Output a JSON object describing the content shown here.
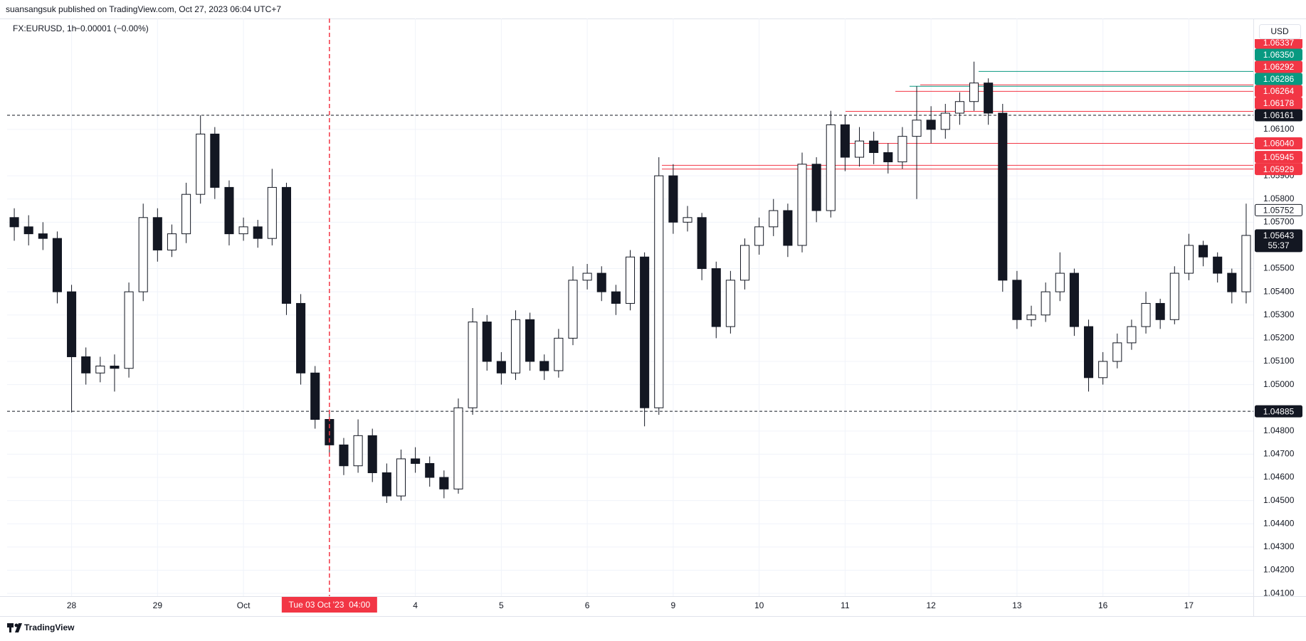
{
  "header": {
    "published": "suansangsuk published on TradingView.com, Oct 27, 2023 06:04 UTC+7",
    "symbol": "FX:EURUSD, 1h",
    "change": "−0.00001 (−0.00%)",
    "currency": "USD",
    "brand": "TradingView"
  },
  "chart_data": {
    "type": "candlestick",
    "categories": [
      null,
      null,
      null,
      null,
      "28",
      null,
      null,
      null,
      null,
      null,
      "29",
      null,
      null,
      null,
      null,
      null,
      "Oct",
      null,
      null,
      null,
      null,
      null,
      null,
      null,
      null,
      null,
      null,
      null,
      "4",
      null,
      null,
      null,
      null,
      null,
      "5",
      null,
      null,
      null,
      null,
      null,
      "6",
      null,
      null,
      null,
      null,
      null,
      "9",
      null,
      null,
      null,
      null,
      null,
      "10",
      null,
      null,
      null,
      null,
      null,
      "11",
      null,
      null,
      null,
      null,
      null,
      "12",
      null,
      null,
      null,
      null,
      null,
      "13",
      null,
      null,
      null,
      null,
      null,
      "16",
      null,
      null,
      null,
      null,
      null,
      "17",
      null,
      null,
      null,
      null
    ],
    "open": [
      1.0572,
      1.0568,
      1.0565,
      1.0563,
      1.054,
      1.0512,
      1.0505,
      1.0508,
      1.0507,
      1.054,
      1.0572,
      1.0558,
      1.0565,
      1.0582,
      1.0608,
      1.0585,
      1.0565,
      1.0568,
      1.0563,
      1.0585,
      1.0535,
      1.0505,
      1.0485,
      1.0474,
      1.0465,
      1.0478,
      1.0462,
      1.0452,
      1.0468,
      1.0466,
      1.046,
      1.0455,
      1.049,
      1.0527,
      1.051,
      1.0505,
      1.0528,
      1.051,
      1.0506,
      1.052,
      1.0545,
      1.0548,
      1.054,
      1.0535,
      1.0555,
      1.049,
      1.059,
      1.057,
      1.0572,
      1.055,
      1.0525,
      1.0545,
      1.056,
      1.0568,
      1.0575,
      1.056,
      1.0595,
      1.0575,
      1.0612,
      1.0598,
      1.0605,
      1.06,
      1.0596,
      1.0607,
      1.0614,
      1.061,
      1.0617,
      1.0622,
      1.063,
      1.0617,
      1.0545,
      1.0528,
      1.053,
      1.054,
      1.0548,
      1.0525,
      1.0503,
      1.051,
      1.0518,
      1.0525,
      1.0535,
      1.0528,
      1.0548,
      1.056,
      1.0555,
      1.0548,
      1.054
    ],
    "high": [
      1.0576,
      1.0573,
      1.057,
      1.0566,
      1.0543,
      1.0516,
      1.0512,
      1.0513,
      1.0544,
      1.0578,
      1.0576,
      1.0569,
      1.0587,
      1.06161,
      1.0611,
      1.0588,
      1.0572,
      1.0571,
      1.0593,
      1.0587,
      1.0539,
      1.0508,
      1.0488,
      1.0477,
      1.0485,
      1.0481,
      1.0466,
      1.0472,
      1.0473,
      1.0469,
      1.0463,
      1.0494,
      1.0533,
      1.053,
      1.0514,
      1.0532,
      1.0531,
      1.0513,
      1.0524,
      1.0551,
      1.0552,
      1.0551,
      1.0543,
      1.0558,
      1.0557,
      1.0598,
      1.0595,
      1.0577,
      1.0574,
      1.0553,
      1.0549,
      1.0563,
      1.0572,
      1.058,
      1.0578,
      1.06,
      1.0598,
      1.0618,
      1.0616,
      1.0611,
      1.0609,
      1.0604,
      1.0611,
      1.06286,
      1.062,
      1.0621,
      1.0626,
      1.06392,
      1.0632,
      1.0621,
      1.0549,
      1.0534,
      1.0544,
      1.0557,
      1.055,
      1.0528,
      1.0514,
      1.0522,
      1.0528,
      1.054,
      1.0537,
      1.0551,
      1.0565,
      1.0562,
      1.0557,
      1.055,
      1.0578
    ],
    "low": [
      1.0562,
      1.056,
      1.0558,
      1.0535,
      1.0488,
      1.05,
      1.0501,
      1.0497,
      1.0503,
      1.0536,
      1.0553,
      1.0555,
      1.0561,
      1.0578,
      1.058,
      1.056,
      1.0562,
      1.0559,
      1.056,
      1.053,
      1.05,
      1.0481,
      1.047,
      1.0461,
      1.0462,
      1.0458,
      1.0449,
      1.045,
      1.0462,
      1.0456,
      1.0451,
      1.0453,
      1.0487,
      1.0506,
      1.05,
      1.0502,
      1.0506,
      1.0502,
      1.0503,
      1.0517,
      1.0541,
      1.0536,
      1.053,
      1.0532,
      1.0482,
      1.0487,
      1.0565,
      1.0566,
      1.0545,
      1.052,
      1.0522,
      1.0541,
      1.0556,
      1.0564,
      1.0555,
      1.0557,
      1.057,
      1.0572,
      1.0592,
      1.0594,
      1.0595,
      1.0591,
      1.0593,
      1.058,
      1.0604,
      1.0606,
      1.0612,
      1.0618,
      1.0612,
      1.054,
      1.0524,
      1.0525,
      1.0527,
      1.0536,
      1.0521,
      1.0497,
      1.05,
      1.0507,
      1.0515,
      1.0522,
      1.0524,
      1.0526,
      1.0545,
      1.0551,
      1.0544,
      1.0535,
      1.0535
    ],
    "close": [
      1.0568,
      1.0565,
      1.0563,
      1.054,
      1.0512,
      1.0505,
      1.0508,
      1.0507,
      1.054,
      1.0572,
      1.0558,
      1.0565,
      1.0582,
      1.0608,
      1.0585,
      1.0565,
      1.0568,
      1.0563,
      1.0585,
      1.0535,
      1.0505,
      1.0485,
      1.0474,
      1.0465,
      1.0478,
      1.0462,
      1.0452,
      1.0468,
      1.0466,
      1.046,
      1.0455,
      1.049,
      1.0527,
      1.051,
      1.0505,
      1.0528,
      1.051,
      1.0506,
      1.052,
      1.0545,
      1.0548,
      1.054,
      1.0535,
      1.0555,
      1.049,
      1.059,
      1.057,
      1.0572,
      1.055,
      1.0525,
      1.0545,
      1.056,
      1.0568,
      1.0575,
      1.056,
      1.0595,
      1.0575,
      1.0612,
      1.0598,
      1.0605,
      1.06,
      1.0596,
      1.0607,
      1.0614,
      1.061,
      1.0617,
      1.0622,
      1.063,
      1.0617,
      1.0545,
      1.0528,
      1.053,
      1.054,
      1.0548,
      1.0525,
      1.0503,
      1.051,
      1.0518,
      1.0525,
      1.0535,
      1.0528,
      1.0548,
      1.056,
      1.0555,
      1.0548,
      1.054,
      1.05643
    ],
    "up_color": "#ffffff",
    "down_color": "#131722",
    "wick_color": "#131722",
    "ylim": [
      1.04088,
      1.06578
    ],
    "yticks": [
      {
        "value": 1.041,
        "label": "1.04100"
      },
      {
        "value": 1.042,
        "label": "1.04200"
      },
      {
        "value": 1.043,
        "label": "1.04300"
      },
      {
        "value": 1.044,
        "label": "1.04400"
      },
      {
        "value": 1.045,
        "label": "1.04500"
      },
      {
        "value": 1.046,
        "label": "1.04600"
      },
      {
        "value": 1.047,
        "label": "1.04700"
      },
      {
        "value": 1.048,
        "label": "1.04800"
      },
      {
        "value": 1.05,
        "label": "1.05000"
      },
      {
        "value": 1.051,
        "label": "1.05100"
      },
      {
        "value": 1.052,
        "label": "1.05200"
      },
      {
        "value": 1.053,
        "label": "1.05300"
      },
      {
        "value": 1.054,
        "label": "1.05400"
      },
      {
        "value": 1.055,
        "label": "1.05500"
      },
      {
        "value": 1.057,
        "label": "1.05700"
      },
      {
        "value": 1.058,
        "label": "1.05800"
      },
      {
        "value": 1.059,
        "label": "1.05900"
      },
      {
        "value": 1.061,
        "label": "1.06100"
      }
    ],
    "grid": true,
    "crosshair": {
      "label": "Tue 03 Oct '23  04:00",
      "color": "#f23645"
    },
    "levels": [
      {
        "value": 1.06337,
        "label": "1.06337",
        "color": "#f23645"
      },
      {
        "value": 1.0635,
        "label": "1.06350",
        "color": "#089981"
      },
      {
        "value": 1.06292,
        "label": "1.06292",
        "color": "#f23645"
      },
      {
        "value": 1.06286,
        "label": "1.06286",
        "color": "#089981"
      },
      {
        "value": 1.06264,
        "label": "1.06264",
        "color": "#f23645"
      },
      {
        "value": 1.06178,
        "label": "1.06178",
        "color": "#f23645"
      },
      {
        "value": 1.06161,
        "label": "1.06161",
        "color": "#131722",
        "line_style": "dashed"
      },
      {
        "value": 1.0604,
        "label": "1.06040",
        "color": "#f23645"
      },
      {
        "value": 1.05945,
        "label": "1.05945",
        "color": "#f23645"
      },
      {
        "value": 1.05929,
        "label": "1.05929",
        "color": "#f23645"
      },
      {
        "value": 1.05752,
        "label": "1.05752",
        "color": "#ffffff"
      },
      {
        "value": 1.05643,
        "label": "1.05643",
        "color": "#131722",
        "countdown": "55:37"
      },
      {
        "value": 1.04885,
        "label": "1.04885",
        "color": "#131722",
        "line_style": "dashed"
      }
    ]
  }
}
